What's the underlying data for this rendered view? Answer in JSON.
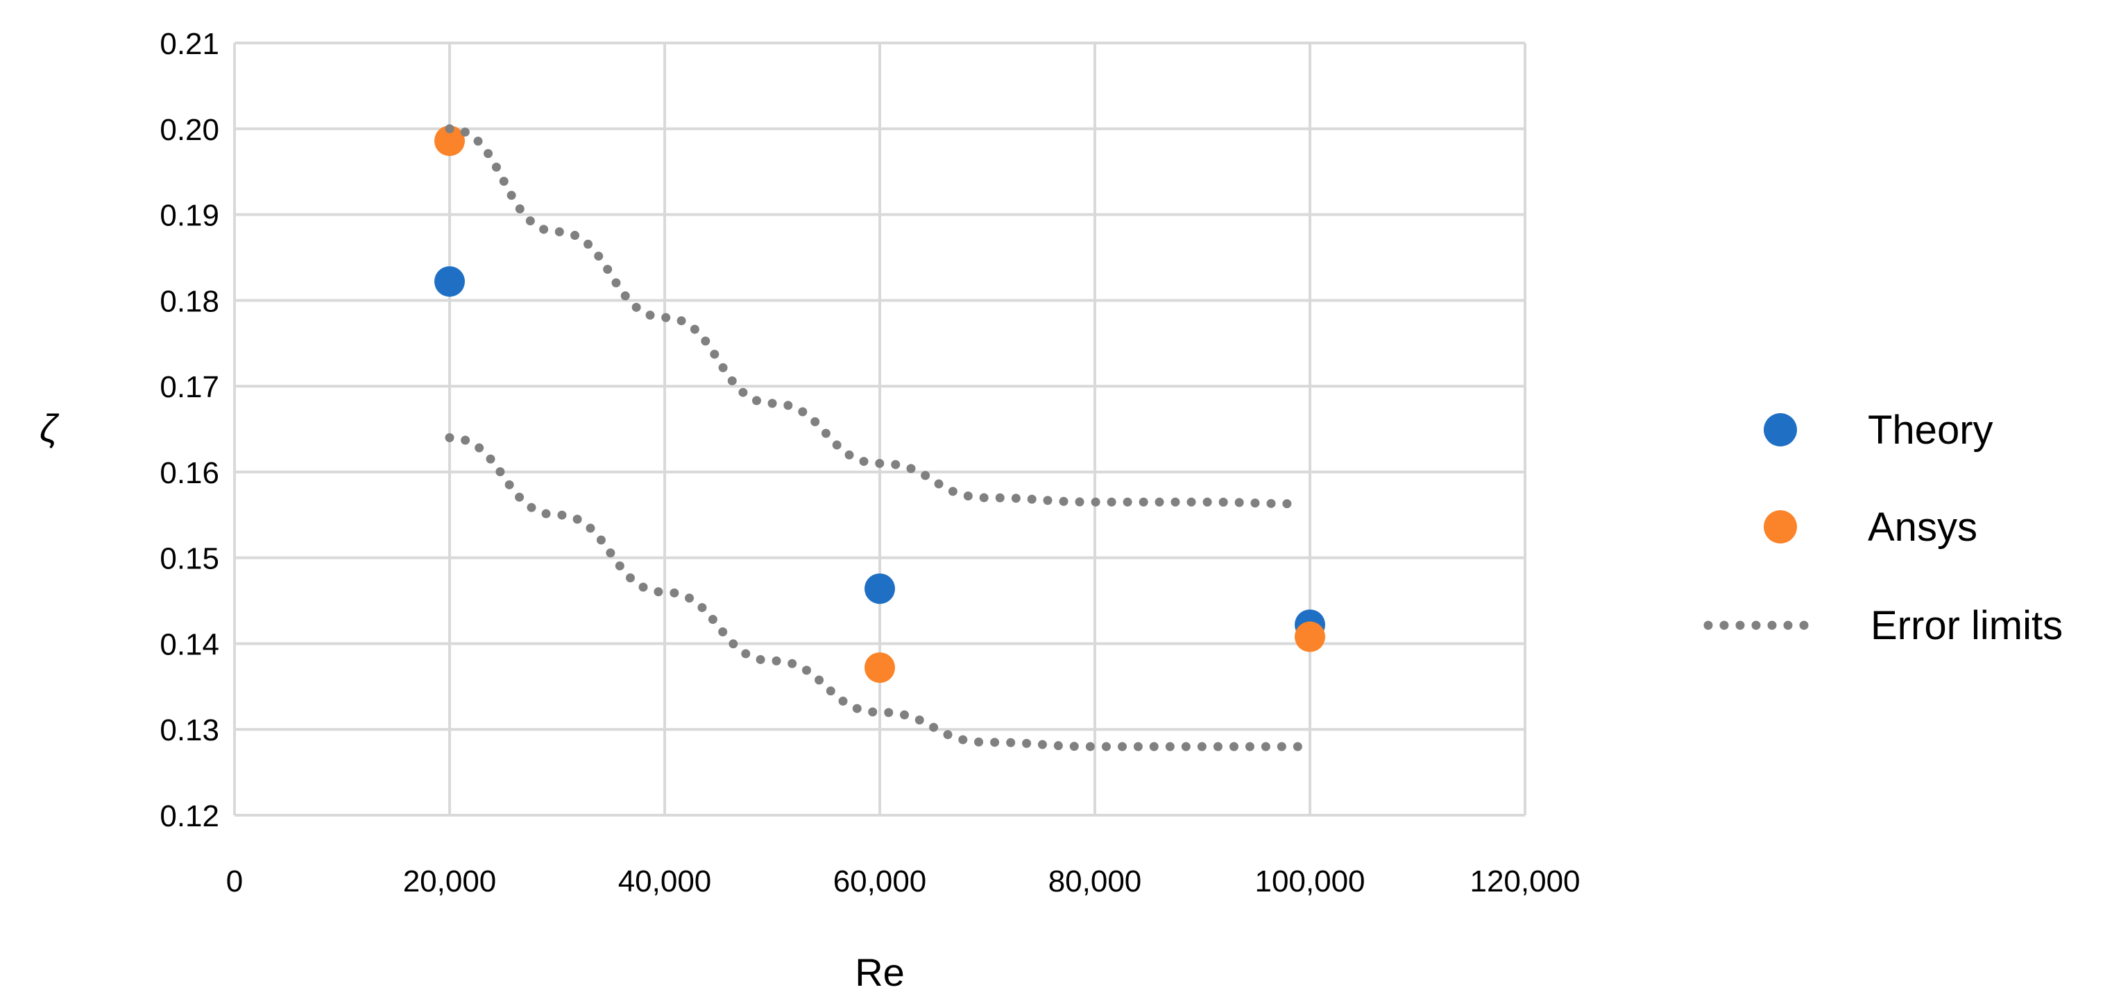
{
  "chart_data": {
    "type": "scatter",
    "xlabel": "Re",
    "ylabel": "ζ",
    "xlim": [
      0,
      120000
    ],
    "ylim": [
      0.12,
      0.21
    ],
    "x_ticks": [
      "0",
      "20,000",
      "40,000",
      "60,000",
      "80,000",
      "100,000",
      "120,000"
    ],
    "y_ticks": [
      "0.21",
      "0.20",
      "0.19",
      "0.18",
      "0.17",
      "0.16",
      "0.15",
      "0.14",
      "0.13",
      "0.12"
    ],
    "grid": true,
    "legend_position": "right",
    "series": [
      {
        "name": "Theory",
        "kind": "markers",
        "color": "#1f6fc5",
        "points": [
          {
            "x": 20000,
            "y": 0.1822
          },
          {
            "x": 60000,
            "y": 0.1464
          },
          {
            "x": 100000,
            "y": 0.1422
          }
        ]
      },
      {
        "name": "Ansys",
        "kind": "markers",
        "color": "#fb8329",
        "points": [
          {
            "x": 20000,
            "y": 0.1986
          },
          {
            "x": 60000,
            "y": 0.1372
          },
          {
            "x": 100000,
            "y": 0.1408
          }
        ]
      },
      {
        "name": "Error limits",
        "kind": "dotted-line",
        "color": "#808080",
        "lines": [
          [
            {
              "x": 20000,
              "y": 0.2
            },
            {
              "x": 30000,
              "y": 0.188
            },
            {
              "x": 40000,
              "y": 0.178
            },
            {
              "x": 50000,
              "y": 0.168
            },
            {
              "x": 60000,
              "y": 0.161
            },
            {
              "x": 70000,
              "y": 0.157
            },
            {
              "x": 80000,
              "y": 0.1565
            },
            {
              "x": 90000,
              "y": 0.1565
            },
            {
              "x": 99000,
              "y": 0.1563
            }
          ],
          [
            {
              "x": 20000,
              "y": 0.164
            },
            {
              "x": 30000,
              "y": 0.155
            },
            {
              "x": 40000,
              "y": 0.146
            },
            {
              "x": 50000,
              "y": 0.138
            },
            {
              "x": 60000,
              "y": 0.132
            },
            {
              "x": 70000,
              "y": 0.1285
            },
            {
              "x": 80000,
              "y": 0.128
            },
            {
              "x": 90000,
              "y": 0.128
            },
            {
              "x": 99000,
              "y": 0.128
            }
          ]
        ]
      }
    ]
  }
}
